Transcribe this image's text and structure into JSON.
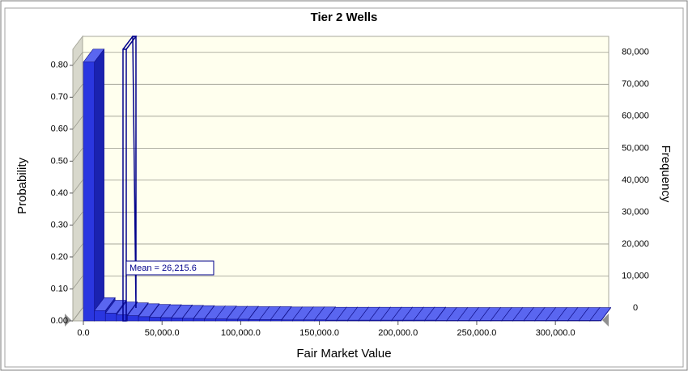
{
  "chart_data": {
    "type": "histogram",
    "title": "Tier 2 Wells",
    "xlabel": "Fair Market Value",
    "ylabel": "Probability",
    "y2label": "Frequency",
    "bins": [
      0,
      7000,
      14000,
      21000,
      28000,
      35000,
      42000,
      49000,
      56000,
      63000,
      70000,
      77000,
      84000,
      91000,
      98000,
      105000,
      112000,
      119000,
      126000,
      133000,
      140000,
      147000,
      154000,
      161000,
      168000,
      175000,
      182000,
      189000,
      196000,
      203000,
      210000,
      217000,
      224000,
      231000,
      238000,
      245000,
      252000,
      259000,
      266000,
      273000,
      280000,
      287000,
      294000,
      301000,
      308000,
      315000,
      322000,
      329000
    ],
    "values": [
      0.81,
      0.032,
      0.024,
      0.019,
      0.016,
      0.013,
      0.011,
      0.01,
      0.009,
      0.008,
      0.007,
      0.006,
      0.006,
      0.005,
      0.005,
      0.004,
      0.004,
      0.004,
      0.003,
      0.003,
      0.003,
      0.003,
      0.002,
      0.002,
      0.002,
      0.002,
      0.002,
      0.002,
      0.002,
      0.002,
      0.002,
      0.002,
      0.001,
      0.001,
      0.001,
      0.001,
      0.001,
      0.001,
      0.001,
      0.001,
      0.001,
      0.001,
      0.001,
      0.001,
      0.001,
      0.001,
      0.001
    ],
    "color": "#2a36e0",
    "xlim": [
      -6700,
      327700
    ],
    "xticks": [
      {
        "value": 0,
        "label": "0.0"
      },
      {
        "value": 50000,
        "label": "50,000.0"
      },
      {
        "value": 100000,
        "label": "100,000.0"
      },
      {
        "value": 150000,
        "label": "150,000.0"
      },
      {
        "value": 200000,
        "label": "200,000.0"
      },
      {
        "value": 250000,
        "label": "250,000.0"
      },
      {
        "value": 300000,
        "label": "300,000.0"
      }
    ],
    "ylim": [
      0,
      0.85
    ],
    "yticks": [
      {
        "value": 0,
        "label": "0.00"
      },
      {
        "value": 0.1,
        "label": "0.10"
      },
      {
        "value": 0.2,
        "label": "0.20"
      },
      {
        "value": 0.3,
        "label": "0.30"
      },
      {
        "value": 0.4,
        "label": "0.40"
      },
      {
        "value": 0.5,
        "label": "0.50"
      },
      {
        "value": 0.6,
        "label": "0.60"
      },
      {
        "value": 0.7,
        "label": "0.70"
      },
      {
        "value": 0.8,
        "label": "0.80"
      }
    ],
    "y2lim": [
      0,
      85000
    ],
    "y2ticks": [
      0,
      {
        "value": 10000,
        "label": "10,000"
      },
      {
        "value": 20000,
        "label": "20,000"
      },
      {
        "value": 30000,
        "label": "30,000"
      },
      {
        "value": 40000,
        "label": "40,000"
      },
      {
        "value": 50000,
        "label": "50,000"
      },
      {
        "value": 60000,
        "label": "60,000"
      },
      {
        "value": 70000,
        "label": "70,000"
      },
      {
        "value": 80000,
        "label": "80,000"
      }
    ],
    "grid": true,
    "annotation": {
      "label": "Mean = 26,215.6",
      "value": 26215.6
    }
  }
}
